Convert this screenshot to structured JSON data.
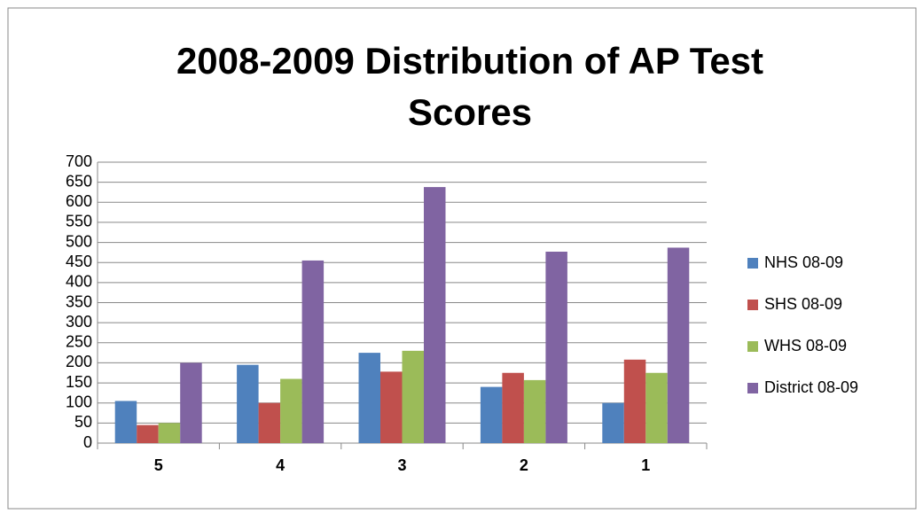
{
  "chart_data": {
    "type": "bar",
    "title": "2008-2009 Distribution of AP Test Scores",
    "categories": [
      "5",
      "4",
      "3",
      "2",
      "1"
    ],
    "series": [
      {
        "name": "NHS 08-09",
        "color": "#4f81bd",
        "values": [
          105,
          195,
          225,
          140,
          100
        ]
      },
      {
        "name": "SHS 08-09",
        "color": "#c0504d",
        "values": [
          45,
          100,
          178,
          175,
          208
        ]
      },
      {
        "name": "WHS 08-09",
        "color": "#9bbb59",
        "values": [
          50,
          160,
          230,
          157,
          175
        ]
      },
      {
        "name": "District 08-09",
        "color": "#8064a2",
        "values": [
          200,
          455,
          638,
          477,
          487
        ]
      }
    ],
    "ylim": [
      0,
      700
    ],
    "yticks": [
      0,
      50,
      100,
      150,
      200,
      250,
      300,
      350,
      400,
      450,
      500,
      550,
      600,
      650,
      700
    ],
    "grid": true,
    "legend": "right"
  }
}
